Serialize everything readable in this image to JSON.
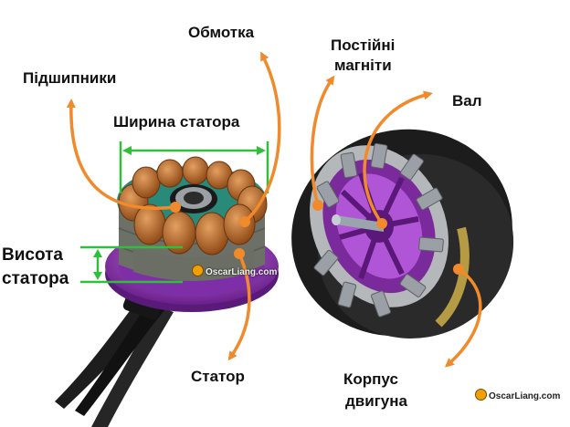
{
  "labels": {
    "bearings": "Підшипники",
    "winding": "Обмотка",
    "magnets_line1": "Постійні",
    "magnets_line2": "магніти",
    "shaft": "Вал",
    "stator_width": "Ширина статора",
    "stator_height_line1": "Висота",
    "stator_height_line2": "статора",
    "stator": "Статор",
    "motor_bell_line1": "Корпус",
    "motor_bell_line2": "двигуна"
  },
  "watermark": {
    "stator_text": "OscarLiang.com",
    "corner_text": "OscarLiang.com"
  },
  "colors": {
    "arrow": "#f08a2a",
    "dimension": "#2fbf3a",
    "copper": "#c06a2a",
    "purple": "#8a2fb0",
    "stator_gray": "#6c7066",
    "black": "#1c1c1c"
  }
}
